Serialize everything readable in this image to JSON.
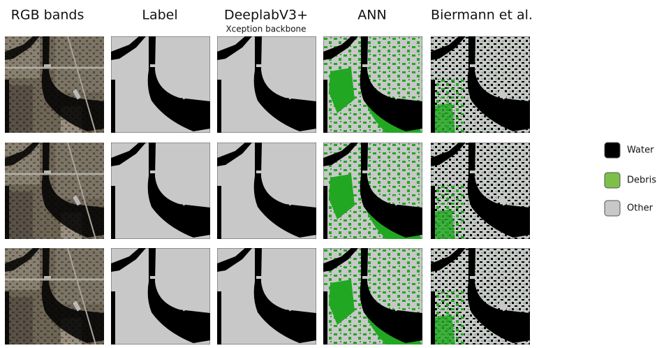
{
  "columns": [
    "RGB bands",
    "Label",
    "DeeplabV3+",
    "ANN",
    "Biermann et al."
  ],
  "subtitle": "Xception backbone",
  "legend": [
    "Water",
    "Debris",
    "Other"
  ]
}
